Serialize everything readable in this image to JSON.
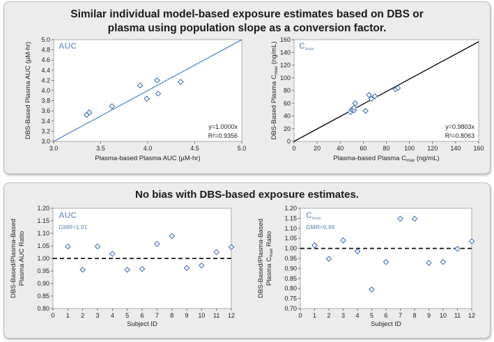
{
  "panels": {
    "top_title_line1": "Similar individual model-based exposure estimates based on DBS or",
    "top_title_line2": "plasma using population slope as a conversion factor.",
    "bottom_title": "No bias with DBS-based exposure estimates."
  },
  "chart_data": [
    {
      "type": "scatter",
      "id": "auc_scatter",
      "inset_label": "AUC",
      "xlabel": "Plasma-based Plasma AUC (µM-hr)",
      "ylabel": "DBS-Based Plasma AUC (µM-hr)",
      "xlim": [
        3.0,
        5.0
      ],
      "ylim": [
        3.0,
        5.0
      ],
      "xticks": [
        "3.0",
        "3.5",
        "4.0",
        "4.5",
        "5.0"
      ],
      "yticks": [
        "3.0",
        "3.2",
        "3.4",
        "3.6",
        "3.8",
        "4.0",
        "4.2",
        "4.4",
        "4.6",
        "4.8",
        "5.0"
      ],
      "points": [
        {
          "x": 3.35,
          "y": 3.52
        },
        {
          "x": 3.38,
          "y": 3.57
        },
        {
          "x": 3.62,
          "y": 3.69
        },
        {
          "x": 3.92,
          "y": 4.1
        },
        {
          "x": 3.99,
          "y": 3.84
        },
        {
          "x": 4.1,
          "y": 4.2
        },
        {
          "x": 4.11,
          "y": 3.94
        },
        {
          "x": 4.35,
          "y": 4.17
        }
      ],
      "fit_slope": 1.0,
      "fit_equation": "y=1.0000x",
      "r_squared": "R²=0.9356",
      "marker_color": "#4a73b3",
      "line_color": "#5a8ec8"
    },
    {
      "type": "scatter",
      "id": "cmax_scatter",
      "inset_label_main": "C",
      "inset_label_sub": "max",
      "xlabel_main": "Plasma-based Plasma C",
      "xlabel_sub": "max",
      "xlabel_tail": " (ng/mL)",
      "ylabel_main": "DBS-Based Plasma C",
      "ylabel_sub": "max",
      "ylabel_tail": " (ng/mL)",
      "xlim": [
        0,
        160
      ],
      "ylim": [
        0,
        160
      ],
      "xticks": [
        "0",
        "20",
        "40",
        "60",
        "80",
        "100",
        "120",
        "140",
        "160"
      ],
      "yticks": [
        "0",
        "20",
        "40",
        "60",
        "80",
        "100",
        "120",
        "140",
        "160"
      ],
      "points": [
        {
          "x": 49,
          "y": 46
        },
        {
          "x": 50,
          "y": 50
        },
        {
          "x": 51,
          "y": 51
        },
        {
          "x": 52,
          "y": 49
        },
        {
          "x": 52,
          "y": 53
        },
        {
          "x": 53,
          "y": 60
        },
        {
          "x": 62,
          "y": 48
        },
        {
          "x": 65,
          "y": 73
        },
        {
          "x": 67,
          "y": 67
        },
        {
          "x": 70,
          "y": 71
        },
        {
          "x": 88,
          "y": 82
        },
        {
          "x": 90,
          "y": 84
        }
      ],
      "fit_slope": 0.9803,
      "fit_equation": "y=0.9803x",
      "r_squared": "R²=0.8063",
      "marker_color": "#4a73b3",
      "line_color": "#000000"
    },
    {
      "type": "scatter",
      "id": "auc_ratio",
      "inset_label": "AUC",
      "gmr_label": "GMR=1.01",
      "xlabel": "Subject ID",
      "ylabel_line1": "DBS-Based/Plasma-Based",
      "ylabel_line2": "Plasma  AUC Ratio",
      "xlim": [
        0,
        12
      ],
      "ylim": [
        0.8,
        1.2
      ],
      "xticks": [
        "0",
        "1",
        "2",
        "3",
        "4",
        "5",
        "6",
        "7",
        "8",
        "9",
        "10",
        "11",
        "12"
      ],
      "yticks": [
        "0.80",
        "0.85",
        "0.90",
        "0.95",
        "1.00",
        "1.05",
        "1.10",
        "1.15",
        "1.20"
      ],
      "reference_y": 1.0,
      "points": [
        {
          "x": 1,
          "y": 1.048
        },
        {
          "x": 2,
          "y": 0.955
        },
        {
          "x": 3,
          "y": 1.048
        },
        {
          "x": 4,
          "y": 1.018
        },
        {
          "x": 5,
          "y": 0.955
        },
        {
          "x": 6,
          "y": 0.958
        },
        {
          "x": 7,
          "y": 1.058
        },
        {
          "x": 8,
          "y": 1.09
        },
        {
          "x": 9,
          "y": 0.962
        },
        {
          "x": 10,
          "y": 0.972
        },
        {
          "x": 11,
          "y": 1.025
        },
        {
          "x": 12,
          "y": 1.045
        }
      ],
      "marker_color": "#4a73b3"
    },
    {
      "type": "scatter",
      "id": "cmax_ratio",
      "inset_label_main": "C",
      "inset_label_sub": "max",
      "gmr_label": "GMR=0.99",
      "xlabel": "Subject ID",
      "ylabel_line1": "DBS-Based/Plasma-Based",
      "ylabel_line2_main": "Plasma  C",
      "ylabel_line2_sub": "max",
      "ylabel_line2_tail": " Ratio",
      "xlim": [
        0,
        12
      ],
      "ylim": [
        0.7,
        1.2
      ],
      "xticks": [
        "0",
        "1",
        "2",
        "3",
        "4",
        "5",
        "6",
        "7",
        "8",
        "9",
        "10",
        "11",
        "12"
      ],
      "yticks": [
        "0.70",
        "0.75",
        "0.80",
        "0.85",
        "0.90",
        "0.95",
        "1.00",
        "1.05",
        "1.10",
        "1.15",
        "1.20"
      ],
      "reference_y": 1.0,
      "points": [
        {
          "x": 1,
          "y": 1.015
        },
        {
          "x": 2,
          "y": 0.948
        },
        {
          "x": 3,
          "y": 1.04
        },
        {
          "x": 4,
          "y": 0.985
        },
        {
          "x": 5,
          "y": 0.795
        },
        {
          "x": 6,
          "y": 0.932
        },
        {
          "x": 7,
          "y": 1.148
        },
        {
          "x": 8,
          "y": 1.148
        },
        {
          "x": 9,
          "y": 0.928
        },
        {
          "x": 10,
          "y": 0.932
        },
        {
          "x": 11,
          "y": 0.998
        },
        {
          "x": 12,
          "y": 1.035
        }
      ],
      "marker_color": "#4a73b3"
    }
  ]
}
